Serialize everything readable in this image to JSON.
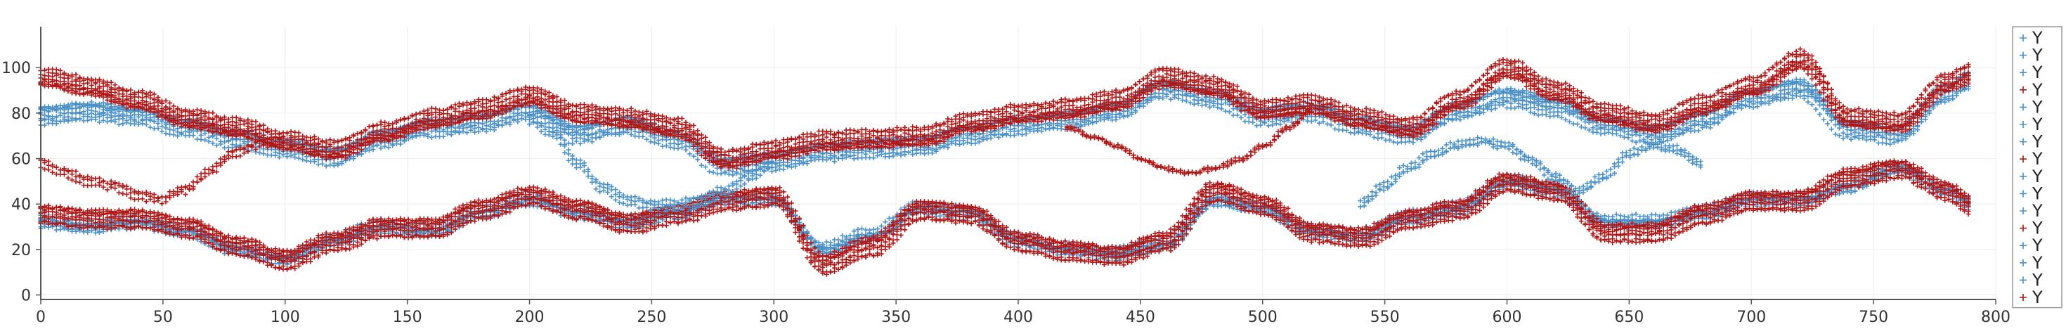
{
  "chart_data": {
    "type": "scatter",
    "title": "",
    "xlabel": "",
    "ylabel": "",
    "xlim": [
      0,
      800
    ],
    "ylim": [
      -2,
      118
    ],
    "xticks": [
      0,
      50,
      100,
      150,
      200,
      250,
      300,
      350,
      400,
      450,
      500,
      550,
      600,
      650,
      700,
      750,
      800
    ],
    "yticks": [
      0,
      20,
      40,
      60,
      80,
      100
    ],
    "grid": true,
    "legend": {
      "placement": "right",
      "label": "Y",
      "entries": 16
    },
    "colors": {
      "blue": "#4a90c8",
      "red": "#b01818"
    },
    "marker": "+",
    "series": [
      {
        "color": "blue",
        "role": "upper-band",
        "x": [
          0,
          20,
          40,
          60,
          80,
          100,
          120,
          140,
          160,
          180,
          200,
          220,
          240,
          260,
          280,
          300,
          320,
          340,
          360,
          380,
          400,
          420,
          440,
          460,
          480,
          500,
          520,
          540,
          560,
          580,
          600,
          620,
          640,
          660,
          680,
          700,
          720,
          740,
          760,
          780,
          790
        ],
        "y": [
          80,
          82,
          80,
          75,
          70,
          66,
          62,
          70,
          75,
          77,
          82,
          72,
          76,
          70,
          58,
          60,
          64,
          66,
          67,
          72,
          76,
          78,
          82,
          92,
          88,
          80,
          82,
          76,
          72,
          82,
          88,
          84,
          76,
          72,
          78,
          88,
          92,
          74,
          72,
          90,
          96
        ]
      },
      {
        "color": "red",
        "role": "upper-band",
        "x": [
          0,
          20,
          40,
          60,
          80,
          100,
          120,
          140,
          160,
          180,
          200,
          220,
          240,
          260,
          280,
          300,
          320,
          340,
          360,
          380,
          400,
          420,
          440,
          460,
          480,
          500,
          520,
          540,
          560,
          580,
          600,
          620,
          640,
          660,
          680,
          700,
          720,
          740,
          760,
          780,
          790
        ],
        "y": [
          96,
          92,
          86,
          78,
          74,
          68,
          64,
          72,
          78,
          82,
          88,
          80,
          78,
          74,
          60,
          64,
          68,
          69,
          70,
          76,
          80,
          82,
          86,
          96,
          92,
          82,
          84,
          78,
          74,
          86,
          100,
          90,
          80,
          76,
          84,
          92,
          104,
          78,
          76,
          94,
          98
        ]
      },
      {
        "color": "blue",
        "role": "lower-band",
        "x": [
          0,
          20,
          40,
          60,
          80,
          100,
          120,
          140,
          160,
          180,
          200,
          220,
          240,
          260,
          280,
          300,
          320,
          340,
          360,
          380,
          400,
          420,
          440,
          460,
          480,
          500,
          520,
          540,
          560,
          580,
          600,
          620,
          640,
          660,
          680,
          700,
          720,
          740,
          760,
          780,
          790
        ],
        "y": [
          30,
          28,
          30,
          26,
          18,
          14,
          22,
          28,
          26,
          34,
          40,
          34,
          30,
          34,
          40,
          40,
          18,
          24,
          36,
          34,
          22,
          18,
          16,
          20,
          40,
          36,
          26,
          24,
          32,
          36,
          48,
          44,
          30,
          30,
          34,
          40,
          40,
          46,
          54,
          44,
          38
        ]
      },
      {
        "color": "red",
        "role": "lower-band",
        "x": [
          0,
          20,
          40,
          60,
          80,
          100,
          120,
          140,
          160,
          180,
          200,
          220,
          240,
          260,
          280,
          300,
          320,
          340,
          360,
          380,
          400,
          420,
          440,
          460,
          480,
          500,
          520,
          540,
          560,
          580,
          600,
          620,
          640,
          660,
          680,
          700,
          720,
          740,
          760,
          780,
          790
        ],
        "y": [
          36,
          34,
          34,
          30,
          22,
          16,
          24,
          30,
          30,
          38,
          44,
          38,
          32,
          36,
          42,
          44,
          14,
          22,
          38,
          36,
          24,
          20,
          18,
          24,
          46,
          40,
          28,
          26,
          34,
          38,
          50,
          46,
          28,
          28,
          36,
          42,
          42,
          52,
          56,
          46,
          40
        ]
      },
      {
        "color": "red",
        "role": "crossing",
        "x": [
          0,
          10,
          20,
          30,
          40,
          50,
          60,
          70,
          80,
          90,
          100
        ],
        "y": [
          58,
          54,
          50,
          48,
          44,
          42,
          46,
          54,
          62,
          66,
          68
        ]
      },
      {
        "color": "blue",
        "role": "crossing",
        "x": [
          200,
          210,
          220,
          230,
          240,
          250,
          260,
          270,
          280,
          290,
          300
        ],
        "y": [
          78,
          72,
          58,
          48,
          42,
          40,
          40,
          42,
          46,
          52,
          58
        ]
      },
      {
        "color": "red",
        "role": "crossing",
        "x": [
          420,
          430,
          440,
          450,
          460,
          470,
          480,
          490,
          500,
          510,
          520
        ],
        "y": [
          72,
          68,
          64,
          58,
          54,
          52,
          54,
          58,
          64,
          72,
          80
        ]
      },
      {
        "color": "blue",
        "role": "crossing",
        "x": [
          540,
          550,
          560,
          570,
          580,
          590,
          600,
          610,
          620,
          630,
          640,
          650,
          660,
          670,
          680
        ],
        "y": [
          40,
          48,
          56,
          62,
          66,
          68,
          66,
          60,
          52,
          46,
          52,
          62,
          66,
          64,
          58
        ]
      }
    ]
  }
}
